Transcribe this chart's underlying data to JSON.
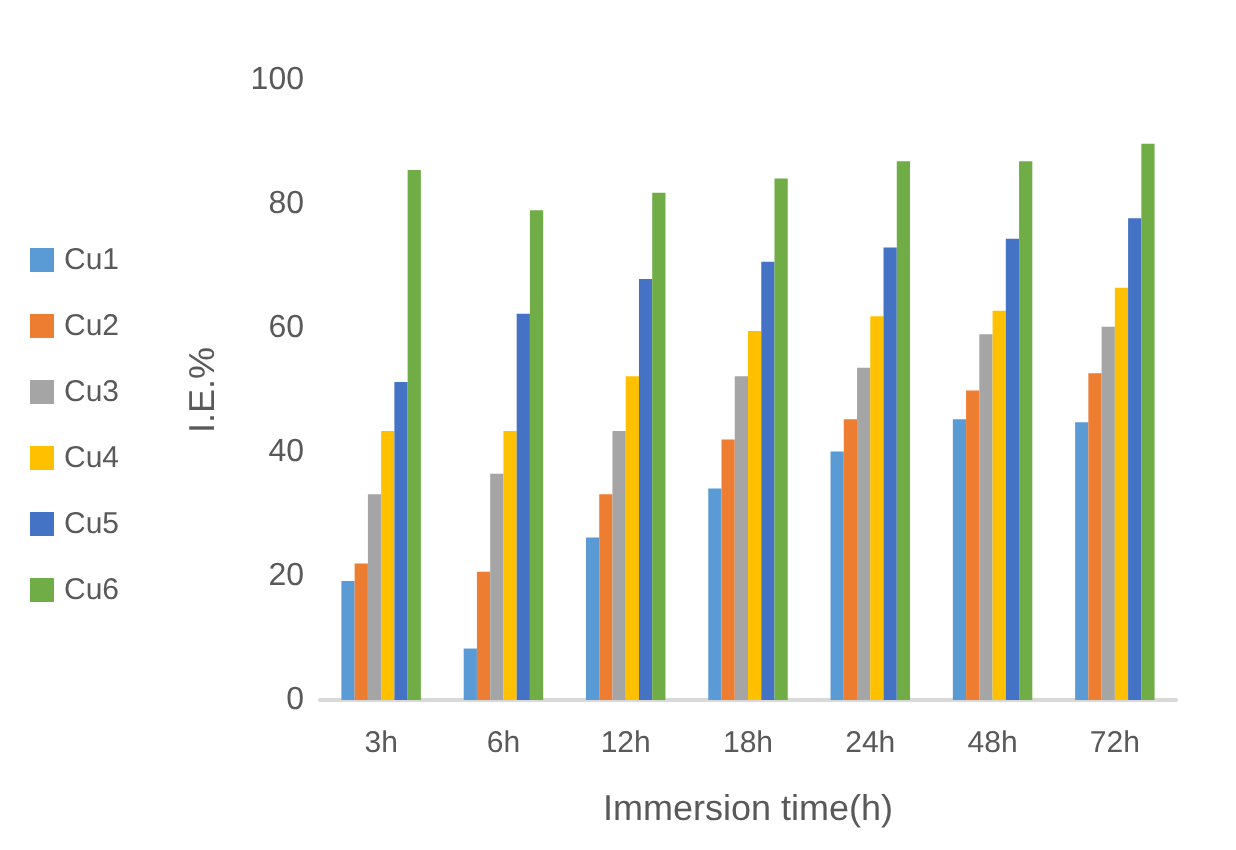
{
  "chart_data": {
    "type": "bar",
    "xlabel": "Immersion time(h)",
    "ylabel": "I.E.%",
    "categories": [
      "3h",
      "6h",
      "12h",
      "18h",
      "24h",
      "48h",
      "72h"
    ],
    "series": [
      {
        "name": "Cu1",
        "color": "#5b9bd5",
        "values": [
          19.2,
          8.3,
          26.2,
          34.1,
          40.1,
          45.3,
          44.8
        ]
      },
      {
        "name": "Cu2",
        "color": "#ed7d31",
        "values": [
          22,
          20.7,
          33.2,
          42,
          45.3,
          49.9,
          52.7
        ]
      },
      {
        "name": "Cu3",
        "color": "#a5a5a5",
        "values": [
          33.2,
          36.5,
          43.4,
          52.2,
          53.6,
          59,
          60.2
        ]
      },
      {
        "name": "Cu4",
        "color": "#ffc000",
        "values": [
          43.4,
          43.4,
          52.2,
          59.5,
          61.9,
          62.8,
          66.5
        ]
      },
      {
        "name": "Cu5",
        "color": "#4472c4",
        "values": [
          51.3,
          62.3,
          67.9,
          70.7,
          73,
          74.4,
          77.7
        ]
      },
      {
        "name": "Cu6",
        "color": "#70ad47",
        "values": [
          85.5,
          79,
          81.8,
          84.1,
          86.9,
          86.9,
          89.7
        ]
      }
    ],
    "ylim": [
      0,
      100
    ],
    "yticks": [
      0,
      20,
      40,
      60,
      80,
      100
    ],
    "grid": false,
    "legend": "left"
  }
}
